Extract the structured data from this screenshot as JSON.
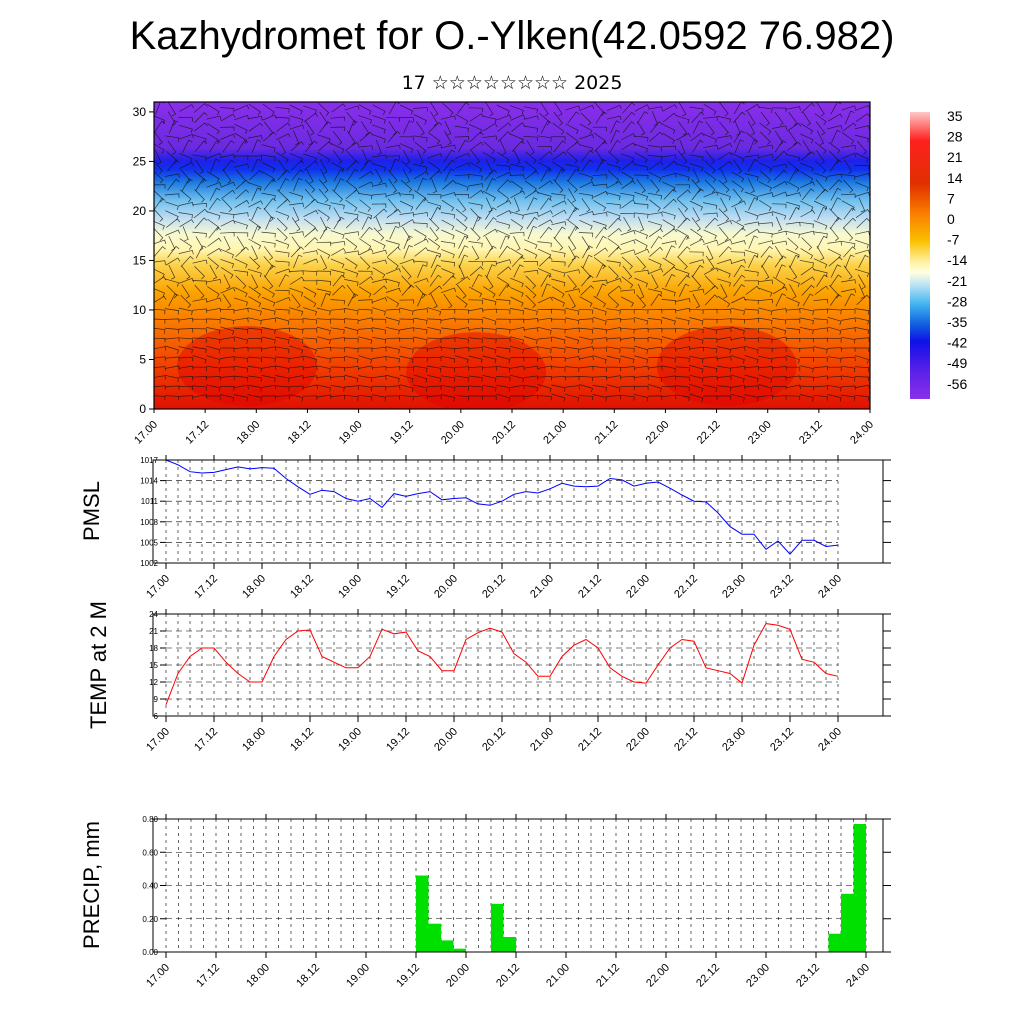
{
  "header": {
    "title": "Kazhydromet for O.-Ylken(42.0592 76.982)",
    "subtitle": "17 ☆☆☆☆☆☆☆☆ 2025"
  },
  "x_ticks": [
    "17.00",
    "17.12",
    "18.00",
    "18.12",
    "19.00",
    "19.12",
    "20.00",
    "20.12",
    "21.00",
    "21.12",
    "22.00",
    "22.12",
    "23.00",
    "23.12",
    "24.00"
  ],
  "chart_data": [
    {
      "type": "heatmap",
      "title": "Kazhydromet for O.-Ylken(42.0592 76.982)",
      "subtitle": "17 ☆☆☆☆☆☆☆☆ 2025",
      "xlabel": "",
      "ylabel": "",
      "x_range": [
        "17.00",
        "24.00"
      ],
      "y_ticks": [
        0,
        5,
        10,
        15,
        20,
        25,
        30
      ],
      "ylim": [
        0,
        31
      ],
      "colorbar_labels": [
        "35",
        "28",
        "21",
        "14",
        "7",
        "0",
        "-7",
        "-14",
        "-21",
        "-28",
        "-35",
        "-42",
        "-49",
        "-56"
      ],
      "overlay": "wind barbs"
    },
    {
      "type": "line",
      "ylabel": "PMSL",
      "ylim": [
        1002,
        1017
      ],
      "y_ticks": [
        1002,
        1005,
        1008,
        1011,
        1014,
        1017
      ],
      "x_hours": [
        0,
        3,
        6,
        9,
        12,
        15,
        18,
        21,
        24,
        27,
        30,
        33,
        36,
        39,
        42,
        45,
        48,
        51,
        54,
        57,
        60,
        63,
        66,
        69,
        72,
        75,
        78,
        81,
        84,
        87,
        90,
        93,
        96,
        99,
        102,
        105,
        108,
        111,
        114,
        117,
        120,
        123,
        126,
        129,
        132,
        135,
        138,
        141,
        144,
        147,
        150,
        153,
        156,
        159,
        162,
        165,
        168
      ],
      "values": [
        1017,
        1016.3,
        1015.3,
        1015.1,
        1015.2,
        1015.6,
        1016,
        1015.7,
        1015.9,
        1015.8,
        1014.3,
        1013.1,
        1012,
        1012.6,
        1012.4,
        1011.4,
        1011,
        1011.4,
        1010.1,
        1012.1,
        1011.7,
        1012.1,
        1012.4,
        1011.2,
        1011.4,
        1011.5,
        1010.6,
        1010.4,
        1011,
        1012,
        1012.4,
        1012.2,
        1012.8,
        1013.6,
        1013.2,
        1013.1,
        1013.2,
        1014.3,
        1014.1,
        1013.2,
        1013.6,
        1013.8,
        1012.9,
        1011.9,
        1011,
        1010.9,
        1009.3,
        1007.3,
        1006.2,
        1006.2,
        1004,
        1005.2,
        1003.3,
        1005.3,
        1005.3,
        1004.4,
        1004.6
      ],
      "color": "#0000ff"
    },
    {
      "type": "line",
      "ylabel": "TEMP at 2 M",
      "ylim": [
        6,
        24
      ],
      "y_ticks": [
        6,
        9,
        12,
        15,
        18,
        21,
        24
      ],
      "x_hours": [
        0,
        3,
        6,
        9,
        12,
        15,
        18,
        21,
        24,
        27,
        30,
        33,
        36,
        39,
        42,
        45,
        48,
        51,
        54,
        57,
        60,
        63,
        66,
        69,
        72,
        75,
        78,
        81,
        84,
        87,
        90,
        93,
        96,
        99,
        102,
        105,
        108,
        111,
        114,
        117,
        120,
        123,
        126,
        129,
        132,
        135,
        138,
        141,
        144,
        147,
        150,
        153,
        156,
        159,
        162,
        165,
        168
      ],
      "values": [
        8,
        13.5,
        16.5,
        18,
        18,
        15.5,
        13.5,
        12,
        12,
        16.5,
        19.5,
        21,
        21.2,
        16.5,
        15.5,
        14.5,
        14.5,
        16.5,
        21.3,
        20.5,
        20.8,
        17.5,
        16.5,
        14,
        14,
        19.5,
        20.7,
        21.5,
        20.8,
        17,
        15.5,
        13,
        13,
        16.5,
        18.5,
        19.5,
        18,
        14.5,
        13,
        12,
        11.8,
        15,
        18,
        19.5,
        19.2,
        14.5,
        14,
        13.5,
        11.8,
        18.5,
        22.3,
        22,
        21.3,
        16,
        15.5,
        13.5,
        13
      ],
      "color": "#ff0000"
    },
    {
      "type": "bar",
      "ylabel": "PRECIP, mm",
      "ylim": [
        0,
        0.8
      ],
      "y_ticks": [
        "0.00",
        "0.20",
        "0.40",
        "0.60",
        "0.80"
      ],
      "x_hours": [
        60,
        63,
        66,
        69,
        78,
        81,
        159,
        162,
        165
      ],
      "values": [
        0.46,
        0.17,
        0.07,
        0.02,
        0.29,
        0.09,
        0.11,
        0.35,
        0.77
      ],
      "color": "#00e000"
    }
  ]
}
